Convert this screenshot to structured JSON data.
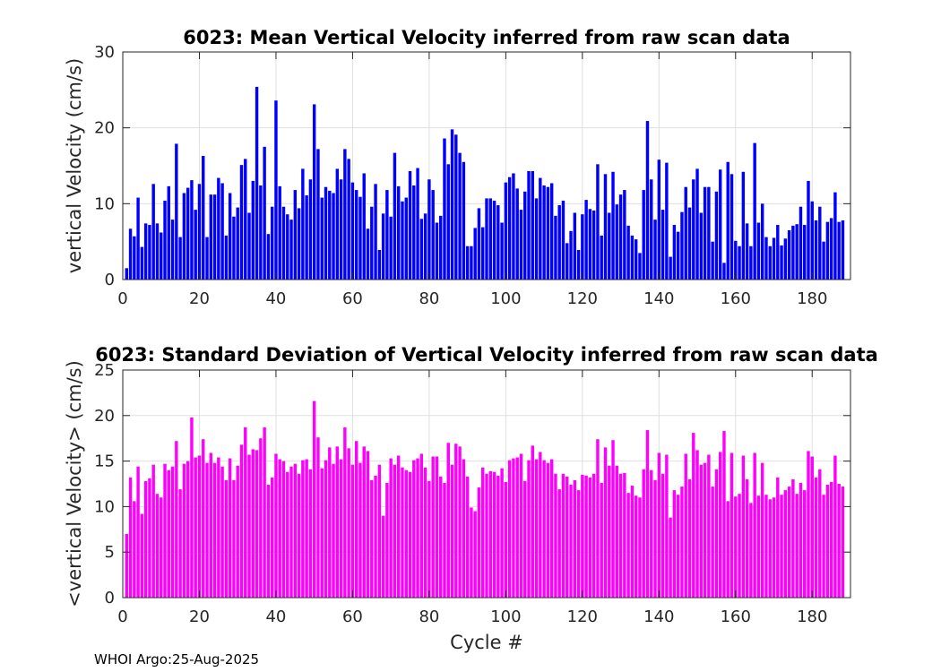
{
  "chart_data": [
    {
      "type": "bar",
      "title": "6023: Mean Vertical Velocity inferred from raw scan data",
      "xlabel": "",
      "ylabel": "vertical Velocity (cm/s)",
      "xlim": [
        0,
        190
      ],
      "ylim": [
        0,
        30
      ],
      "xticks": [
        0,
        20,
        40,
        60,
        80,
        100,
        120,
        140,
        160,
        180
      ],
      "yticks": [
        0,
        10,
        20,
        30
      ],
      "grid": true,
      "color": "#0000ff",
      "x_start": 1,
      "values": [
        1.5,
        6.7,
        5.7,
        10.8,
        4.3,
        7.4,
        7.2,
        12.6,
        7.4,
        6.2,
        10.4,
        12.3,
        7.9,
        17.9,
        5.6,
        11.4,
        12.1,
        13.1,
        9.2,
        12.6,
        16.3,
        5.6,
        11.2,
        11.2,
        13.4,
        12.7,
        5.8,
        11.4,
        8.3,
        9.5,
        15.1,
        15.9,
        8.8,
        13.0,
        25.4,
        12.4,
        17.5,
        6.0,
        9.6,
        23.6,
        12.3,
        9.6,
        8.6,
        7.9,
        11.8,
        9.4,
        14.6,
        11.1,
        13.2,
        23.1,
        17.2,
        10.8,
        12.2,
        11.7,
        11.4,
        14.6,
        13.2,
        17.2,
        15.9,
        12.8,
        11.8,
        10.9,
        14.0,
        6.7,
        9.6,
        12.6,
        3.9,
        8.7,
        11.8,
        8.3,
        16.7,
        12.3,
        10.3,
        10.8,
        14.3,
        12.4,
        14.7,
        8.0,
        8.7,
        13.2,
        11.8,
        7.5,
        8.4,
        18.6,
        15.2,
        19.8,
        19.1,
        16.7,
        15.5,
        4.4,
        4.4,
        6.8,
        9.4,
        6.9,
        10.7,
        10.7,
        10.4,
        9.8,
        7.5,
        12.8,
        13.5,
        14.0,
        12.0,
        9.2,
        11.6,
        14.3,
        14.3,
        10.7,
        13.4,
        12.4,
        12.2,
        12.7,
        8.4,
        9.8,
        10.4,
        4.8,
        6.4,
        8.8,
        3.9,
        8.6,
        10.5,
        9.3,
        9.1,
        15.2,
        5.8,
        13.9,
        8.8,
        14.2,
        9.9,
        11.2,
        11.8,
        7.1,
        5.8,
        5.3,
        3.5,
        11.8,
        20.9,
        13.2,
        7.9,
        15.8,
        9.2,
        15.4,
        3.0,
        7.2,
        6.3,
        8.9,
        12.2,
        9.5,
        13.2,
        14.6,
        8.8,
        12.2,
        12.2,
        5.0,
        11.6,
        14.5,
        2.2,
        15.5,
        13.9,
        5.1,
        4.4,
        14.2,
        7.4,
        4.4,
        18.0,
        7.5,
        10.0,
        5.6,
        4.4,
        5.5,
        7.2,
        4.5,
        5.4,
        6.5,
        7.1,
        7.3,
        9.6,
        7.2,
        13.0,
        10.3,
        7.8,
        9.6,
        5.0,
        7.6,
        8.1,
        11.5,
        7.6,
        7.8
      ]
    },
    {
      "type": "bar",
      "title": "6023: Standard Deviation of Vertical Velocity inferred from raw scan data",
      "xlabel": "Cycle #",
      "ylabel": "<vertical Velocity> (cm/s)",
      "xlim": [
        0,
        190
      ],
      "ylim": [
        0,
        25
      ],
      "xticks": [
        0,
        20,
        40,
        60,
        80,
        100,
        120,
        140,
        160,
        180
      ],
      "yticks": [
        0,
        5,
        10,
        15,
        20,
        25
      ],
      "grid": true,
      "color": "#ff00ff",
      "x_start": 1,
      "values": [
        7.0,
        13.2,
        10.6,
        14.4,
        9.2,
        12.8,
        13.1,
        14.6,
        11.4,
        11.0,
        14.7,
        14.0,
        14.4,
        17.2,
        11.9,
        14.7,
        15.0,
        19.8,
        15.4,
        15.6,
        17.4,
        14.8,
        15.9,
        14.8,
        15.4,
        14.4,
        12.9,
        15.3,
        12.9,
        14.5,
        16.8,
        18.7,
        15.7,
        16.3,
        16.2,
        17.5,
        18.7,
        12.4,
        13.2,
        15.8,
        15.2,
        15.0,
        13.8,
        14.4,
        14.7,
        13.6,
        15.1,
        15.2,
        14.1,
        21.6,
        17.6,
        14.2,
        15.1,
        16.5,
        14.7,
        16.6,
        15.2,
        18.7,
        16.4,
        14.6,
        17.2,
        14.8,
        16.6,
        16.1,
        12.9,
        13.4,
        14.6,
        9.0,
        12.6,
        15.3,
        14.6,
        15.6,
        14.3,
        14.0,
        13.8,
        15.1,
        15.3,
        15.8,
        14.3,
        12.8,
        15.5,
        15.5,
        13.3,
        12.6,
        17.0,
        14.6,
        16.9,
        16.6,
        15.2,
        13.3,
        9.9,
        9.5,
        12.1,
        14.3,
        13.6,
        13.9,
        13.8,
        13.4,
        14.2,
        12.7,
        15.1,
        15.3,
        15.4,
        15.8,
        12.8,
        15.1,
        16.7,
        15.2,
        16.0,
        15.1,
        14.8,
        15.2,
        13.6,
        11.9,
        13.6,
        13.3,
        12.4,
        12.9,
        11.8,
        13.5,
        13.4,
        13.2,
        13.6,
        17.4,
        12.6,
        16.5,
        14.5,
        17.3,
        14.5,
        13.6,
        13.7,
        11.5,
        12.3,
        11.2,
        11.0,
        14.1,
        18.4,
        14.0,
        12.9,
        15.9,
        13.6,
        15.7,
        8.8,
        11.8,
        11.3,
        12.2,
        15.8,
        13.0,
        18.1,
        16.2,
        14.6,
        14.8,
        15.7,
        12.2,
        14.1,
        16.0,
        18.3,
        10.6,
        15.9,
        11.1,
        11.4,
        15.6,
        13.0,
        10.4,
        15.9,
        11.2,
        14.8,
        11.3,
        10.8,
        11.0,
        13.2,
        11.3,
        11.8,
        12.2,
        13.0,
        11.4,
        12.6,
        11.8,
        16.1,
        15.5,
        13.2,
        14.1,
        11.3,
        12.4,
        12.7,
        15.6,
        12.5,
        12.2
      ]
    }
  ],
  "footer": {
    "text": "WHOI Argo:25-Aug-2025"
  }
}
